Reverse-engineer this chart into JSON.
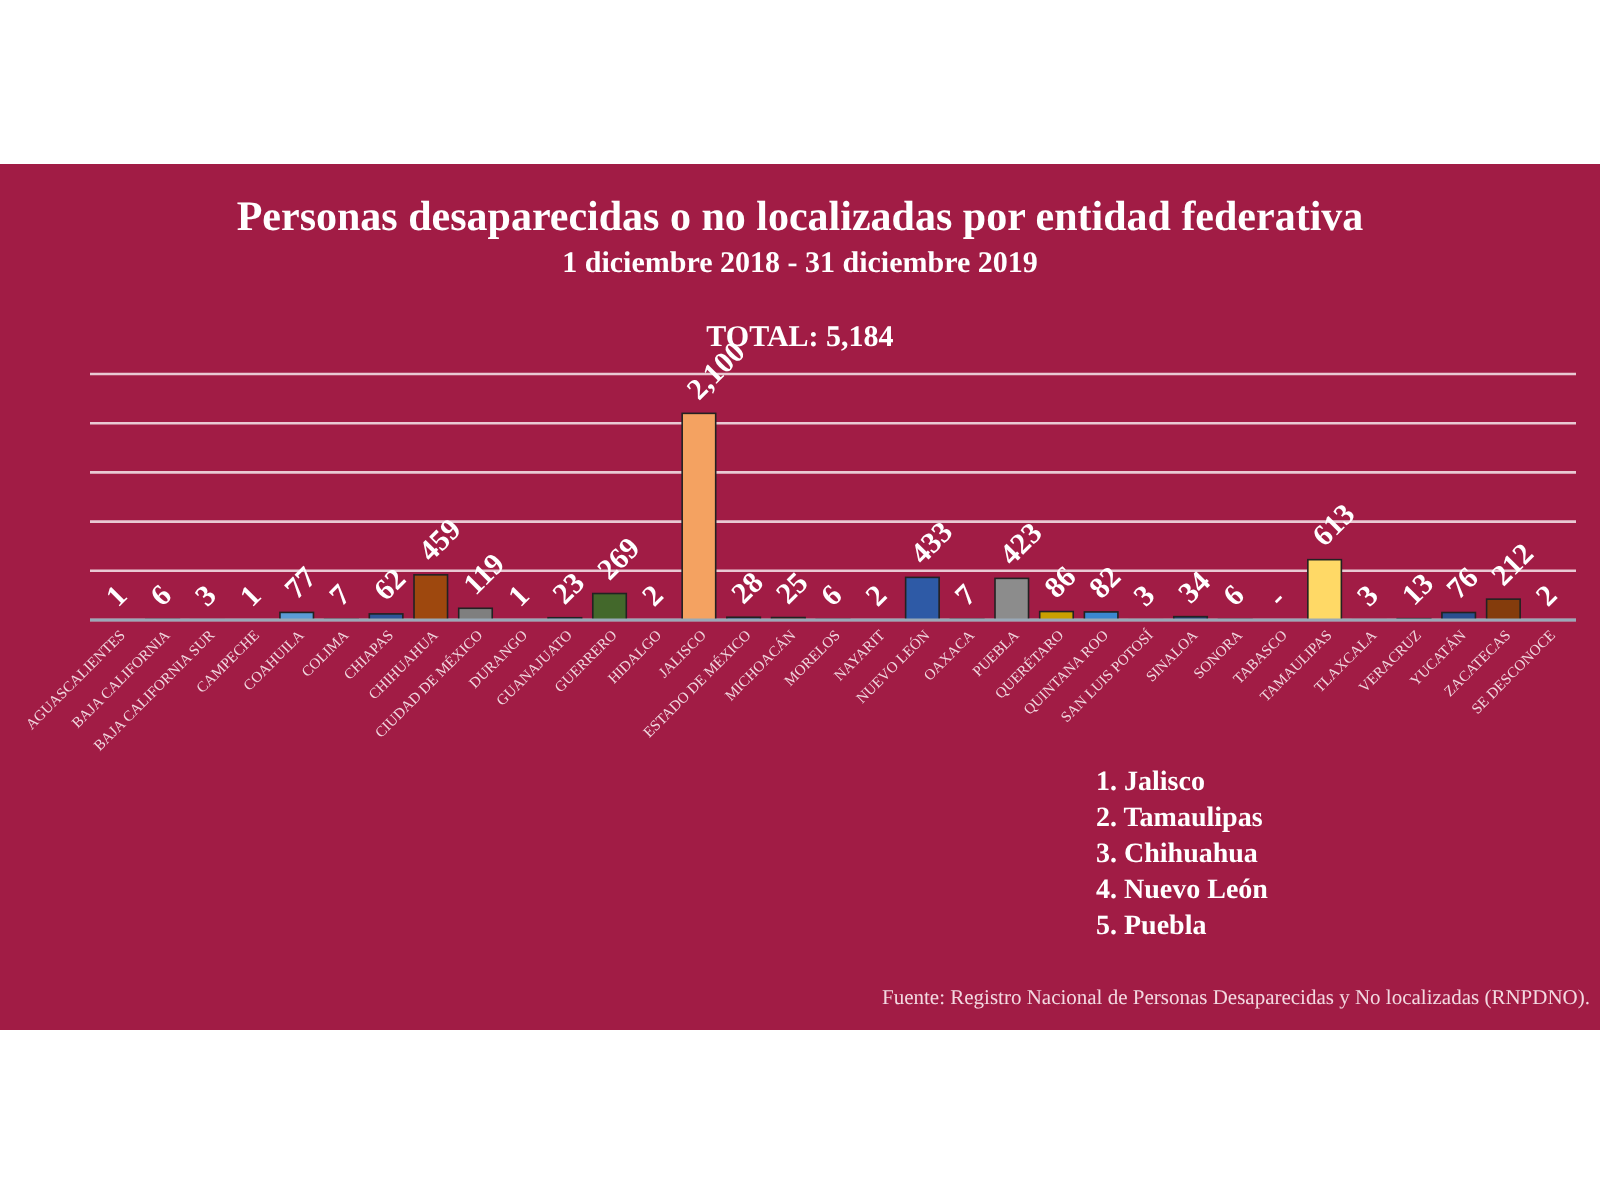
{
  "chart_data": {
    "type": "bar",
    "title": "Personas desaparecidas o no localizadas por entidad federativa",
    "subtitle": "1 diciembre 2018 -  31 diciembre 2019",
    "categories": [
      "AGUASCALIENTES",
      "BAJA CALIFORNIA",
      "BAJA CALIFORNIA SUR",
      "CAMPECHE",
      "COAHUILA",
      "COLIMA",
      "CHIAPAS",
      "CHIHUAHUA",
      "CIUDAD DE MÉXICO",
      "DURANGO",
      "GUANAJUATO",
      "GUERRERO",
      "HIDALGO",
      "JALISCO",
      "ESTADO DE MÉXICO",
      "MICHOACÁN",
      "MORELOS",
      "NAYARIT",
      "NUEVO LEÓN",
      "OAXACA",
      "PUEBLA",
      "QUERÉTARO",
      "QUINTANA ROO",
      "SAN LUIS POTOSÍ",
      "SINALOA",
      "SONORA",
      "TABASCO",
      "TAMAULIPAS",
      "TLAXCALA",
      "VERACRUZ",
      "YUCATÁN",
      "ZACATECAS",
      "SE DESCONOCE"
    ],
    "values": [
      1,
      6,
      3,
      1,
      77,
      7,
      62,
      459,
      119,
      1,
      23,
      269,
      2,
      2100,
      28,
      25,
      6,
      2,
      433,
      7,
      423,
      86,
      82,
      3,
      34,
      6,
      null,
      613,
      3,
      13,
      76,
      212,
      2
    ],
    "value_labels": [
      "1",
      "6",
      "3",
      "1",
      "77",
      "7",
      "62",
      "459",
      "119",
      "1",
      "23",
      "269",
      "2",
      "2,100",
      "28",
      "25",
      "6",
      "2",
      "433",
      "7",
      "423",
      "86",
      "82",
      "3",
      "34",
      "6",
      "-",
      "613",
      "3",
      "13",
      "76",
      "212",
      "2"
    ],
    "colors": [
      "#4a7fb5",
      "#4a7fb5",
      "#4a7fb5",
      "#4a7fb5",
      "#5b9bd5",
      "#4a7fb5",
      "#2e5597",
      "#9e480e",
      "#7f7f7f",
      "#4a7fb5",
      "#264478",
      "#43682b",
      "#4a7fb5",
      "#f4a261",
      "#264478",
      "#6b2a1a",
      "#4a7fb5",
      "#4a7fb5",
      "#2e5aa6",
      "#4a7fb5",
      "#8c8c8c",
      "#c9a000",
      "#3a87d0",
      "#4a7fb5",
      "#264478",
      "#4a7fb5",
      null,
      "#ffd966",
      "#4a7fb5",
      "#4a7fb5",
      "#2a4f8f",
      "#843c0c",
      "#4a7fb5"
    ],
    "ylim": [
      0,
      2500
    ],
    "yticks": [
      {
        "value": 0,
        "label": null
      },
      {
        "value": 500,
        "label": null
      },
      {
        "value": 1000,
        "label": null
      },
      {
        "value": 1500,
        "label": null
      },
      {
        "value": 2000,
        "label": null
      },
      {
        "value": 2500,
        "label": null
      }
    ],
    "grid": "y",
    "tick_labels": "x",
    "annotations": [
      "TOTAL: 5,184",
      "1.  Jalisco",
      "2.  Tamaulipas",
      "3.  Chihuahua",
      "4.  Nuevo León",
      "5.  Puebla",
      "Fuente: Registro Nacional de Personas Desaparecidas y No localizadas (RNPDNO)."
    ]
  }
}
